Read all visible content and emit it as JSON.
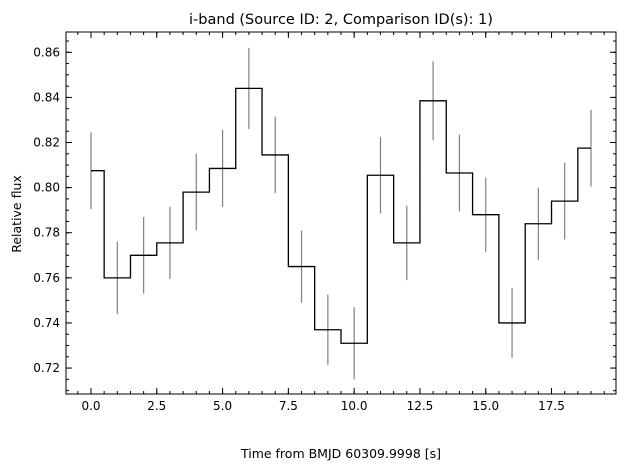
{
  "chart_data": {
    "type": "step",
    "title": "i-band (Source ID: 2, Comparison ID(s): 1)",
    "xlabel": "Time from BMJD 60309.9998 [s]",
    "ylabel": "Relative flux",
    "xlim": [
      -0.95,
      19.95
    ],
    "ylim": [
      0.7085,
      0.869
    ],
    "x_ticks": [
      0.0,
      2.5,
      5.0,
      7.5,
      10.0,
      12.5,
      15.0,
      17.5
    ],
    "x_tick_labels": [
      "0.0",
      "2.5",
      "5.0",
      "7.5",
      "10.0",
      "12.5",
      "15.0",
      "17.5"
    ],
    "y_ticks": [
      0.72,
      0.74,
      0.76,
      0.78,
      0.8,
      0.82,
      0.84,
      0.86
    ],
    "y_tick_labels": [
      "0.72",
      "0.74",
      "0.76",
      "0.78",
      "0.80",
      "0.82",
      "0.84",
      "0.86"
    ],
    "x_minor_step": 0.5,
    "y_minor_step": 0.005,
    "grid": false,
    "step_color": "#000000",
    "errorbar_color": "#808080",
    "series": [
      {
        "x": [
          0,
          1,
          2,
          3,
          4,
          5,
          6,
          7,
          8,
          9,
          10,
          11,
          12,
          13,
          14,
          15,
          16,
          17,
          18,
          19
        ],
        "y": [
          0.8075,
          0.76,
          0.77,
          0.7755,
          0.798,
          0.8085,
          0.844,
          0.8145,
          0.765,
          0.737,
          0.731,
          0.8055,
          0.7755,
          0.8385,
          0.8065,
          0.788,
          0.74,
          0.784,
          0.794,
          0.8175
        ],
        "yerr": [
          0.017,
          0.016,
          0.017,
          0.016,
          0.017,
          0.017,
          0.018,
          0.017,
          0.016,
          0.0155,
          0.016,
          0.017,
          0.0165,
          0.0175,
          0.017,
          0.0165,
          0.0155,
          0.016,
          0.017,
          0.017
        ]
      }
    ]
  }
}
